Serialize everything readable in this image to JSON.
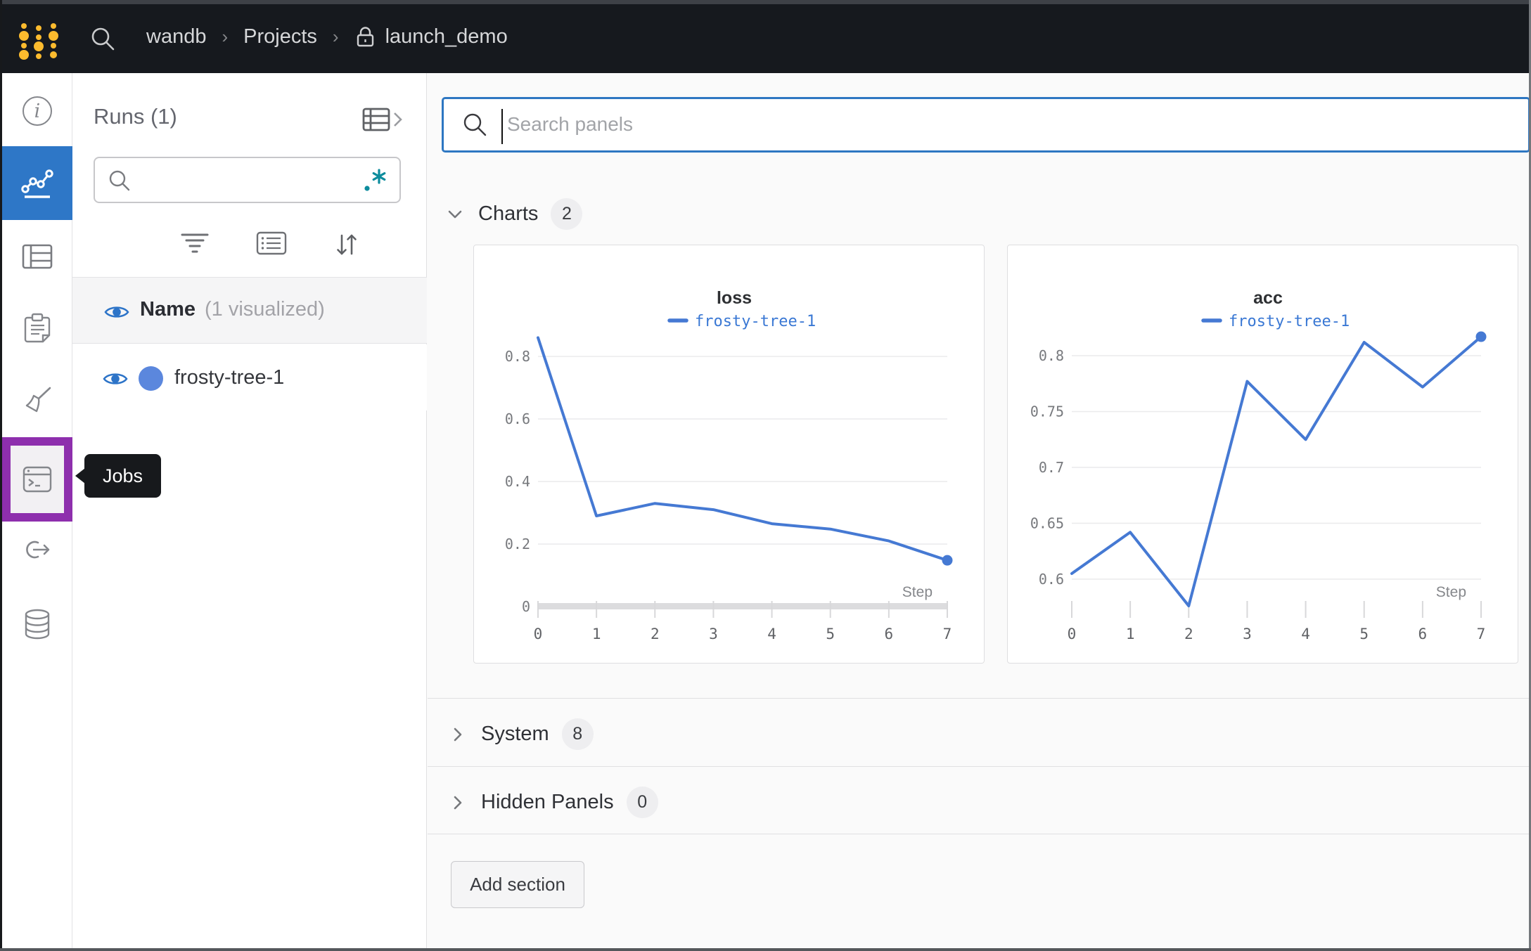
{
  "navbar": {
    "breadcrumb": [
      "wandb",
      "Projects",
      "launch_demo"
    ],
    "separator": "›",
    "icons": [
      "wandb-logo",
      "search-icon",
      "lock-icon"
    ]
  },
  "sidebar": {
    "icons": [
      "info-icon",
      "charts-icon",
      "tables-icon",
      "notes-icon",
      "sweeps-icon",
      "jobs-icon",
      "launch-icon",
      "artifacts-icon"
    ],
    "selected": "charts-icon",
    "highlighted": "jobs-icon"
  },
  "tooltip": {
    "label": "Jobs"
  },
  "runs_panel": {
    "title": "Runs (1)",
    "search_value": "",
    "header_label": "Name",
    "header_note": "(1 visualized)",
    "run_name": "frosty-tree-1",
    "icons": [
      "table-expand-icon",
      "search-icon",
      "regex-icon",
      "filter-icon",
      "list-view-icon",
      "sort-icon",
      "eye-icon"
    ]
  },
  "main": {
    "search_placeholder": "Search panels",
    "sections": {
      "charts": {
        "label": "Charts",
        "count": "2"
      },
      "system": {
        "label": "System",
        "count": "8"
      },
      "hidden": {
        "label": "Hidden Panels",
        "count": "0"
      }
    },
    "add_section_label": "Add section"
  },
  "chart_data": [
    {
      "type": "line",
      "title": "loss",
      "xlabel": "Step",
      "x": [
        0,
        1,
        2,
        3,
        4,
        5,
        6,
        7
      ],
      "xlim": [
        0,
        7
      ],
      "xticks": [
        "0",
        "1",
        "2",
        "3",
        "4",
        "5",
        "6",
        "7"
      ],
      "ylim": [
        0,
        0.861
      ],
      "yticks": [
        {
          "v": 0,
          "label": "0"
        },
        {
          "v": 0.2,
          "label": "0.2"
        },
        {
          "v": 0.4,
          "label": "0.4"
        },
        {
          "v": 0.6,
          "label": "0.6"
        },
        {
          "v": 0.8,
          "label": "0.8"
        }
      ],
      "x_axis_bar": true,
      "grid": true,
      "legend_position": "top",
      "series": [
        {
          "name": "frosty-tree-1",
          "color": "#4579d3",
          "values": [
            0.86,
            0.29,
            0.33,
            0.31,
            0.265,
            0.248,
            0.21,
            0.148
          ]
        }
      ]
    },
    {
      "type": "line",
      "title": "acc",
      "xlabel": "Step",
      "x": [
        0,
        1,
        2,
        3,
        4,
        5,
        6,
        7
      ],
      "xlim": [
        0,
        7
      ],
      "xticks": [
        "0",
        "1",
        "2",
        "3",
        "4",
        "5",
        "6",
        "7"
      ],
      "ylim": [
        0.5754,
        0.8164
      ],
      "yticks": [
        {
          "v": 0.6,
          "label": "0.6"
        },
        {
          "v": 0.65,
          "label": "0.65"
        },
        {
          "v": 0.7,
          "label": "0.7"
        },
        {
          "v": 0.75,
          "label": "0.75"
        },
        {
          "v": 0.8,
          "label": "0.8"
        }
      ],
      "x_axis_bar": false,
      "grid": true,
      "legend_position": "top",
      "series": [
        {
          "name": "frosty-tree-1",
          "color": "#4579d3",
          "values": [
            0.605,
            0.642,
            0.576,
            0.777,
            0.725,
            0.812,
            0.772,
            0.817
          ]
        }
      ]
    }
  ],
  "colors": {
    "navbar_bg": "#16191e",
    "accent_blue": "#2e77c7",
    "jobs_highlight_purple": "#8e2fad",
    "run_color": "#5b87dd",
    "chart_line_blue": "#4579d3",
    "regex_teal": "#0d8c9d",
    "logo_gold": "#fcbb2e"
  }
}
